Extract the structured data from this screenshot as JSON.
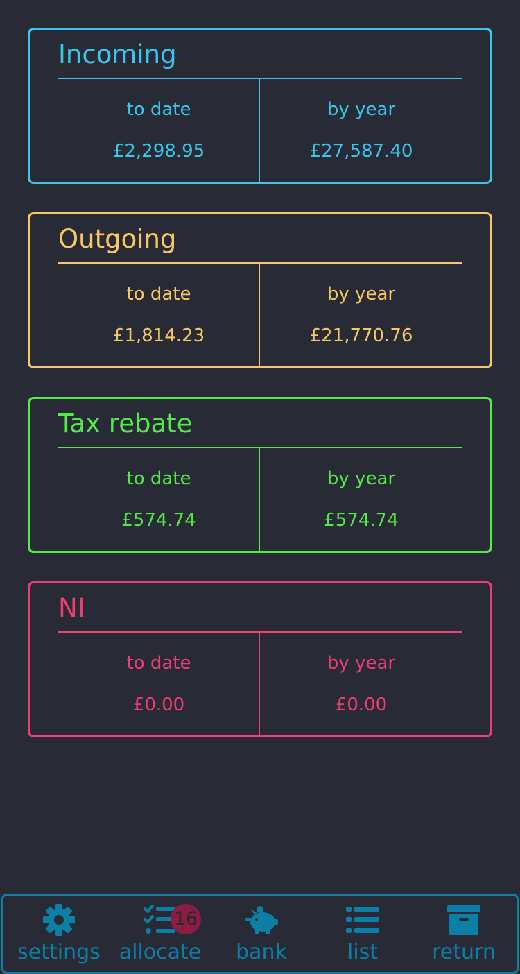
{
  "colors": {
    "background": "#282b35",
    "incoming": "#39c6ec",
    "outgoing": "#f6c861",
    "tax_rebate": "#52ea44",
    "ni": "#ee3d73",
    "nav": "#0b7fa6",
    "badge": "#8c1c42"
  },
  "cards": [
    {
      "title": "Incoming",
      "to_date_label": "to date",
      "by_year_label": "by year",
      "to_date": "£2,298.95",
      "by_year": "£27,587.40"
    },
    {
      "title": "Outgoing",
      "to_date_label": "to date",
      "by_year_label": "by year",
      "to_date": "£1,814.23",
      "by_year": "£21,770.76"
    },
    {
      "title": "Tax rebate",
      "to_date_label": "to date",
      "by_year_label": "by year",
      "to_date": "£574.74",
      "by_year": "£574.74"
    },
    {
      "title": "NI",
      "to_date_label": "to date",
      "by_year_label": "by year",
      "to_date": "£0.00",
      "by_year": "£0.00"
    }
  ],
  "nav": {
    "items": [
      {
        "label": "settings",
        "icon": "gear-icon"
      },
      {
        "label": "allocate",
        "icon": "checklist-icon",
        "badge": "16"
      },
      {
        "label": "bank",
        "icon": "piggy-bank-icon"
      },
      {
        "label": "list",
        "icon": "list-icon"
      },
      {
        "label": "return",
        "icon": "archive-box-icon"
      }
    ]
  }
}
